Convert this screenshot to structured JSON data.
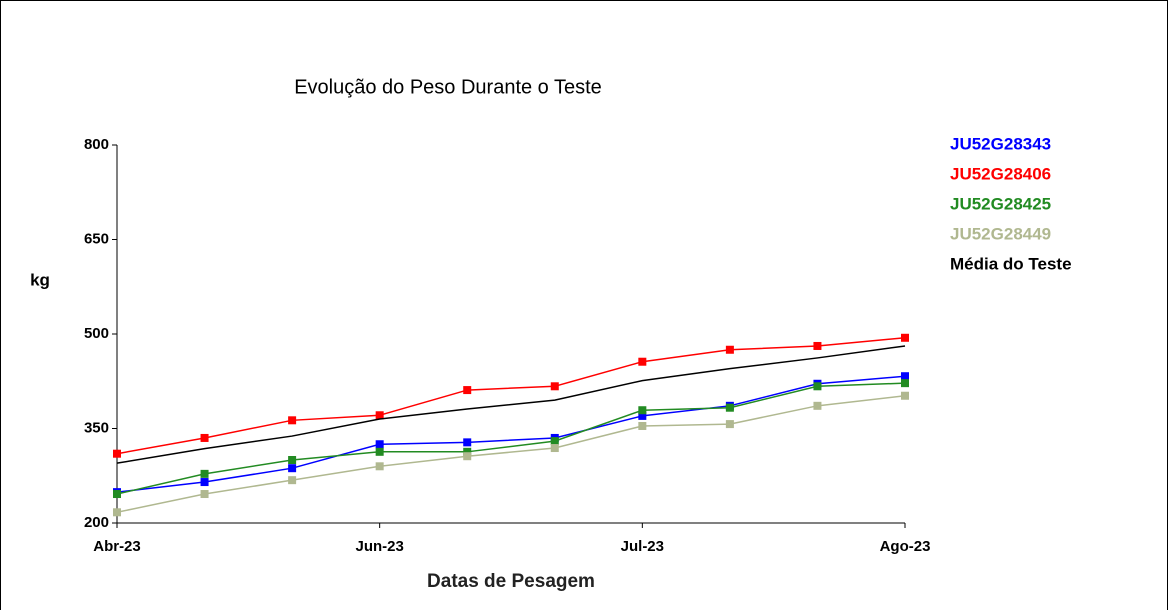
{
  "chart_data": {
    "type": "line",
    "title": "Evolução do Peso Durante o Teste",
    "ylabel": "kg",
    "xlabel": "Datas de Pesagem",
    "categories": [
      "Abr-23",
      null,
      null,
      "Jun-23",
      null,
      null,
      "Jul-23",
      null,
      null,
      "Ago-23"
    ],
    "ylim": [
      200,
      800
    ],
    "yticks": [
      200,
      350,
      500,
      650,
      800
    ],
    "series": [
      {
        "name": "JU52G28343",
        "color": "#0000ff",
        "markers": true,
        "values": [
          249,
          265,
          287,
          325,
          328,
          335,
          370,
          386,
          421,
          433
        ]
      },
      {
        "name": "JU52G28406",
        "color": "#ff0000",
        "markers": true,
        "values": [
          310,
          335,
          363,
          371,
          411,
          417,
          456,
          475,
          481,
          494
        ]
      },
      {
        "name": "JU52G28425",
        "color": "#228b22",
        "markers": true,
        "values": [
          246,
          278,
          300,
          313,
          313,
          330,
          379,
          383,
          417,
          422
        ]
      },
      {
        "name": "JU52G28449",
        "color": "#b0b890",
        "markers": true,
        "values": [
          217,
          246,
          268,
          290,
          306,
          319,
          354,
          357,
          386,
          402
        ]
      },
      {
        "name": "Média do Teste",
        "color": "#000000",
        "markers": false,
        "values": [
          295,
          318,
          338,
          365,
          381,
          395,
          426,
          445,
          462,
          481
        ]
      }
    ]
  }
}
